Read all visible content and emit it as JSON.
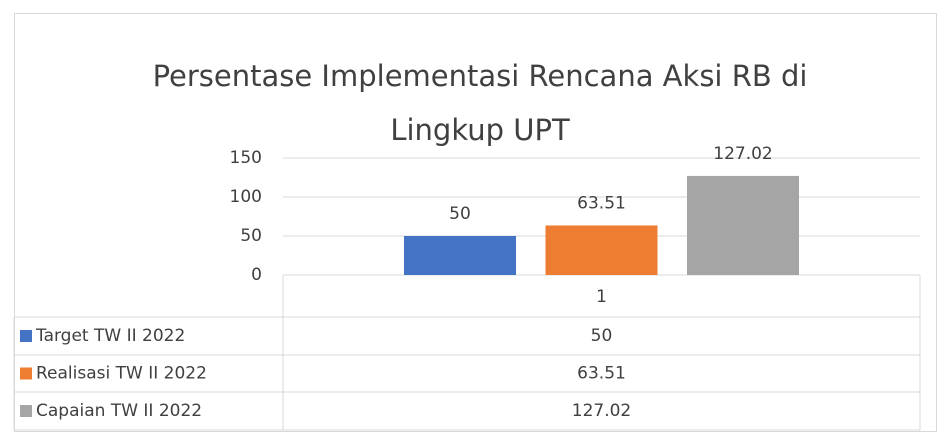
{
  "chart_data": {
    "type": "bar",
    "title": "Persentase Implementasi Rencana Aksi RB di Lingkup UPT",
    "categories": [
      "1"
    ],
    "series": [
      {
        "name": "Target TW II 2022",
        "color": "#4472c4",
        "values": [
          50
        ]
      },
      {
        "name": "Realisasi TW II 2022",
        "color": "#ed7d31",
        "values": [
          63.51
        ]
      },
      {
        "name": "Capaian TW II 2022",
        "color": "#a5a5a5",
        "values": [
          127.02
        ]
      }
    ],
    "ylim": [
      0,
      150
    ],
    "yticks": [
      0,
      50,
      100,
      150
    ],
    "grid": true,
    "data_table": true
  }
}
